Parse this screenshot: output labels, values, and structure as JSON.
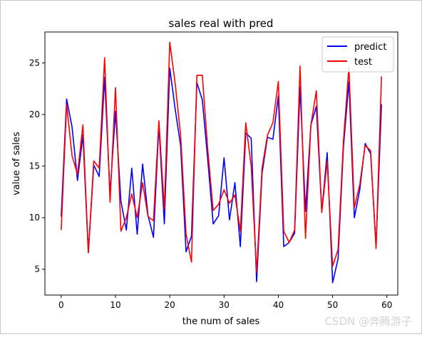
{
  "watermark": "CSDN @奔腾游子",
  "chart_data": {
    "type": "line",
    "title": "sales real with pred",
    "xlabel": "the num of sales",
    "ylabel": "value of sales",
    "xlim": [
      -3,
      62
    ],
    "ylim": [
      2.5,
      28
    ],
    "xticks": [
      0,
      10,
      20,
      30,
      40,
      50,
      60
    ],
    "yticks": [
      5,
      10,
      15,
      20,
      25
    ],
    "grid": false,
    "legend_position": "top-right",
    "x": [
      0,
      1,
      2,
      3,
      4,
      5,
      6,
      7,
      8,
      9,
      10,
      11,
      12,
      13,
      14,
      15,
      16,
      17,
      18,
      19,
      20,
      21,
      22,
      23,
      24,
      25,
      26,
      27,
      28,
      29,
      30,
      31,
      32,
      33,
      34,
      35,
      36,
      37,
      38,
      39,
      40,
      41,
      42,
      43,
      44,
      45,
      46,
      47,
      48,
      49,
      50,
      51,
      52,
      53,
      54,
      55,
      56,
      57,
      58,
      59
    ],
    "series": [
      {
        "name": "predict",
        "color": "#0000ff",
        "values": [
          10.1,
          21.5,
          18.8,
          13.6,
          18.0,
          6.6,
          15.1,
          14.0,
          23.6,
          12.3,
          20.3,
          11.6,
          8.8,
          14.8,
          8.4,
          15.2,
          10.2,
          8.1,
          19.0,
          9.4,
          24.5,
          20.5,
          17.0,
          6.7,
          8.2,
          23.1,
          21.4,
          15.6,
          9.4,
          10.2,
          15.8,
          9.8,
          13.4,
          7.2,
          18.2,
          17.7,
          3.8,
          14.3,
          17.8,
          17.6,
          21.8,
          7.2,
          7.6,
          8.5,
          22.7,
          10.6,
          19.0,
          20.8,
          10.6,
          16.3,
          3.7,
          6.0,
          16.9,
          23.2,
          10.0,
          12.7,
          17.2,
          16.2,
          7.2,
          21.0
        ]
      },
      {
        "name": "test",
        "color": "#ff0000",
        "values": [
          8.8,
          21.0,
          16.0,
          14.2,
          19.0,
          6.6,
          15.5,
          14.8,
          25.5,
          11.5,
          22.6,
          8.7,
          10.0,
          12.3,
          10.0,
          13.4,
          10.1,
          9.7,
          19.4,
          10.8,
          27.0,
          23.0,
          18.0,
          8.4,
          5.7,
          23.8,
          23.8,
          16.6,
          10.7,
          11.3,
          12.7,
          11.4,
          12.2,
          8.7,
          19.2,
          15.0,
          4.7,
          14.8,
          18.0,
          19.2,
          23.2,
          8.7,
          7.6,
          8.8,
          24.7,
          8.0,
          19.0,
          22.3,
          10.5,
          15.5,
          5.3,
          6.9,
          17.5,
          24.6,
          11.0,
          13.2,
          17.0,
          16.5,
          7.0,
          23.7
        ]
      }
    ]
  }
}
